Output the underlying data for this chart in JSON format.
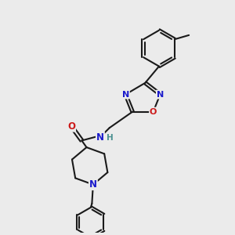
{
  "background_color": "#ebebeb",
  "bond_color": "#1a1a1a",
  "atom_colors": {
    "N": "#1a1acc",
    "O": "#cc1a1a",
    "H": "#4a9090",
    "C": "#1a1a1a"
  },
  "figsize": [
    3.0,
    3.0
  ],
  "dpi": 100,
  "xlim": [
    0,
    10
  ],
  "ylim": [
    0,
    10
  ]
}
